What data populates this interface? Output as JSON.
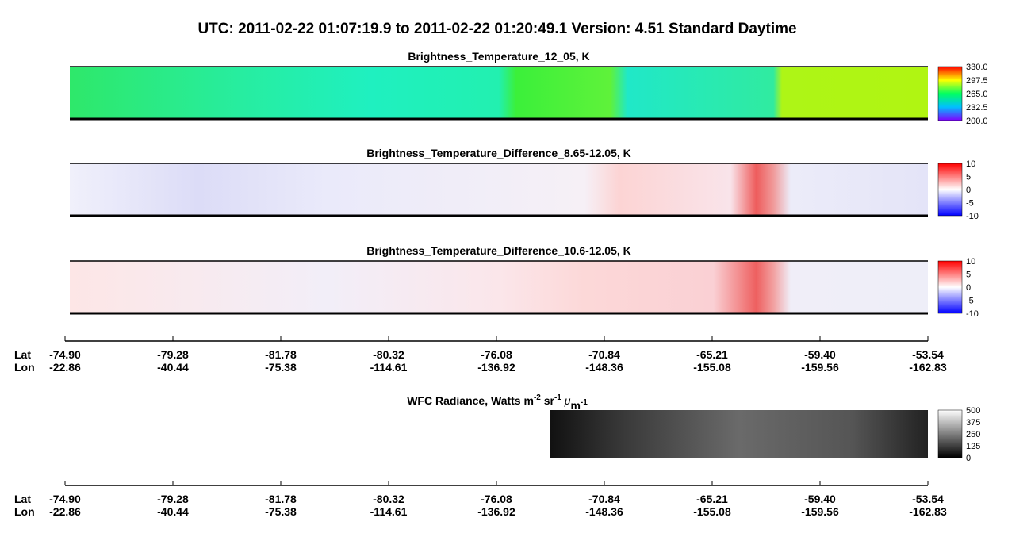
{
  "title": "UTC:  2011-02-22   01:07:19.9  to  2011-02-22   01:20:49.1    Version: 4.51  Standard Daytime",
  "panels": [
    {
      "title": "Brightness_Temperature_12_05, K",
      "colorbar": [
        "330.0",
        "297.5",
        "265.0",
        "232.5",
        "200.0"
      ]
    },
    {
      "title": "Brightness_Temperature_Difference_8.65-12.05, K",
      "colorbar": [
        "10",
        "5",
        "0",
        "-5",
        "-10"
      ]
    },
    {
      "title": "Brightness_Temperature_Difference_10.6-12.05, K",
      "colorbar": [
        "10",
        "5",
        "0",
        "-5",
        "-10"
      ]
    }
  ],
  "axis_top": {
    "lat_label": "Lat",
    "lon_label": "Lon",
    "lat": [
      "-74.90",
      "-79.28",
      "-81.78",
      "-80.32",
      "-76.08",
      "-70.84",
      "-65.21",
      "-59.40",
      "-53.54"
    ],
    "lon": [
      "-22.86",
      "-40.44",
      "-75.38",
      "-114.61",
      "-136.92",
      "-148.36",
      "-155.08",
      "-159.56",
      "-162.83"
    ]
  },
  "wfc": {
    "title_parts": [
      "WFC Radiance, Watts m",
      "-2",
      " sr",
      "-1",
      " ",
      "μ",
      "m",
      "-1"
    ],
    "colorbar": [
      "500",
      "375",
      "250",
      "125",
      "0"
    ]
  },
  "axis_bottom": {
    "lat_label": "Lat",
    "lon_label": "Lon",
    "lat": [
      "-74.90",
      "-79.28",
      "-81.78",
      "-80.32",
      "-76.08",
      "-70.84",
      "-65.21",
      "-59.40",
      "-53.54"
    ],
    "lon": [
      "-22.86",
      "-40.44",
      "-75.38",
      "-114.61",
      "-136.92",
      "-148.36",
      "-155.08",
      "-159.56",
      "-162.83"
    ]
  }
}
